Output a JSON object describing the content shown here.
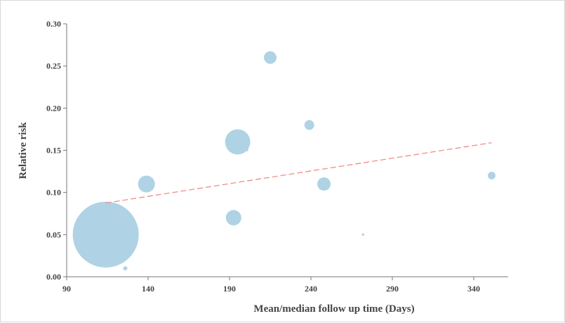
{
  "chart_data": {
    "type": "scatter",
    "variant": "bubble",
    "xlabel": "Mean/median follow up time (Days)",
    "ylabel": "Relative risk",
    "xlim": [
      90,
      358
    ],
    "ylim": [
      0,
      0.3
    ],
    "xticks": [
      "90",
      "140",
      "190",
      "240",
      "290",
      "340"
    ],
    "yticks": [
      "0.00",
      "0.05",
      "0.10",
      "0.15",
      "0.20",
      "0.25",
      "0.30"
    ],
    "grid": false,
    "bubble_color": "#afd3e5",
    "trend_color": "#f28b8b",
    "points": [
      {
        "x": 114,
        "y": 0.05,
        "weight": 2209
      },
      {
        "x": 126,
        "y": 0.01,
        "weight": 9
      },
      {
        "x": 139,
        "y": 0.11,
        "weight": 144
      },
      {
        "x": 192.5,
        "y": 0.07,
        "weight": 121
      },
      {
        "x": 195,
        "y": 0.16,
        "weight": 324
      },
      {
        "x": 201,
        "y": 0.15,
        "weight": 2
      },
      {
        "x": 215,
        "y": 0.26,
        "weight": 81
      },
      {
        "x": 239,
        "y": 0.18,
        "weight": 49
      },
      {
        "x": 248,
        "y": 0.11,
        "weight": 90
      },
      {
        "x": 272,
        "y": 0.05,
        "weight": 3
      },
      {
        "x": 351,
        "y": 0.12,
        "weight": 30
      }
    ],
    "trendline": {
      "style": "dashed",
      "x": [
        114,
        351
      ],
      "y": [
        0.0875,
        0.159
      ]
    }
  }
}
